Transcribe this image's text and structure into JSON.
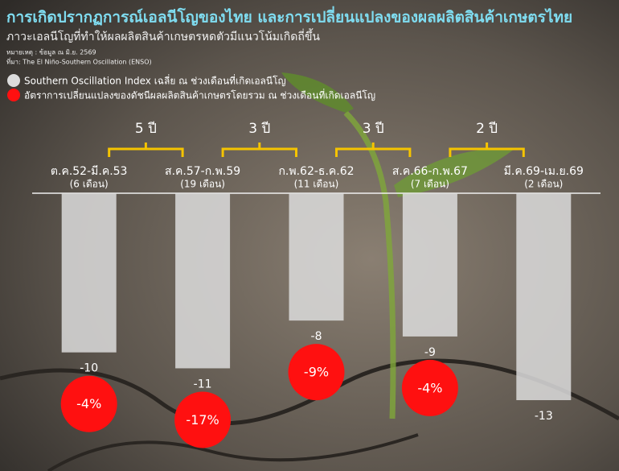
{
  "title": "การเกิดปรากฏการณ์เอลนีโญของไทย และการเปลี่ยนแปลงของผลผลิตสินค้าเกษตรไทย",
  "subtitle": "ภาวะเอลนีโญที่ทำให้ผลผลิตสินค้าเกษตรหดตัวมีแนวโน้มเกิดถี่ขึ้น",
  "notes": [
    "หมายเหตุ : ข้อมูล ณ มิ.ย. 2569",
    "ที่มา: The El Niño-Southern Oscillation (ENSO)"
  ],
  "chart_data": {
    "type": "bar",
    "categories": [
      "ต.ค.52-มี.ค.53",
      "ส.ค.57-ก.พ.59",
      "ก.พ.62-ธ.ค.62",
      "ส.ค.66-ก.พ.67",
      "มี.ค.69-เม.ย.69"
    ],
    "category_notes": [
      "(6 เดือน)",
      "(19 เดือน)",
      "(11 เดือน)",
      "(7 เดือน)",
      "(2 เดือน)"
    ],
    "intervals": [
      "5 ปี",
      "3 ปี",
      "3 ปี",
      "2 ปี"
    ],
    "series": [
      {
        "name": "Southern Oscillation Index  เฉลี่ย ณ ช่วงเดือนที่เกิดเอลนีโญ",
        "color": "#dcdcdc",
        "values": [
          -10,
          -11,
          -8,
          -9,
          -13
        ]
      },
      {
        "name": "อัตราการเปลี่ยนแปลงของดัชนีผลผลิตสินค้าเกษตรโดยรวม ณ ช่วงเดือนที่เกิดเอลนีโญ",
        "color": "#ff1010",
        "values": [
          -4,
          -17,
          -9,
          -4,
          null
        ],
        "value_labels": [
          "-4%",
          "-17%",
          "-9%",
          "-4%",
          null
        ]
      }
    ],
    "ylim": [
      -13,
      0
    ]
  }
}
